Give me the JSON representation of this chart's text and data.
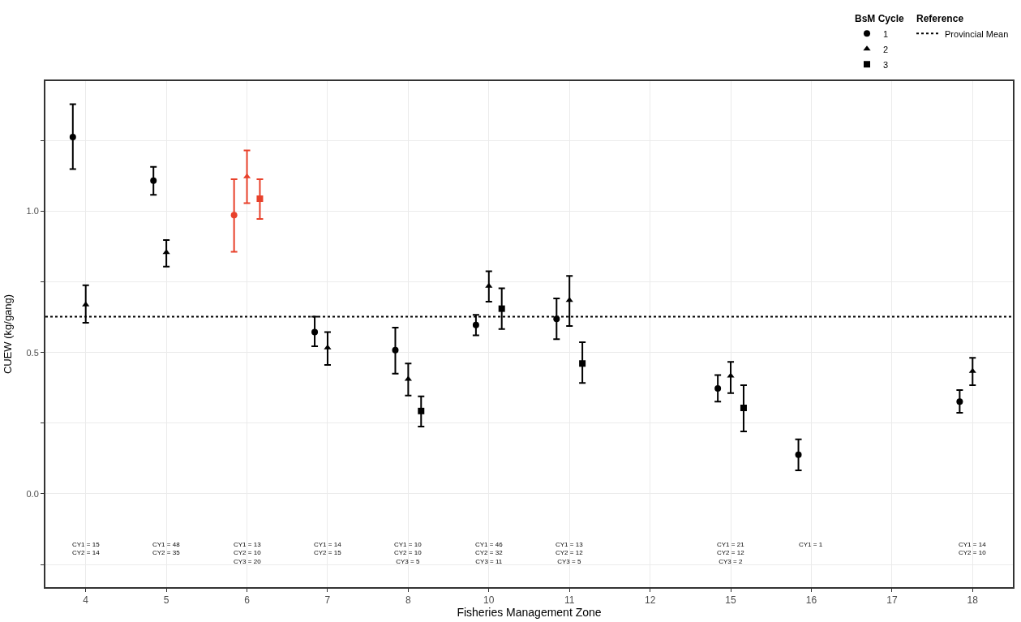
{
  "chart_data": {
    "type": "scatter",
    "xlabel": "Fisheries Management Zone",
    "ylabel": "CUEW (kg/gang)",
    "legend_title": "BsM Cycle",
    "legend": "top right",
    "grid": true,
    "categories": [
      "4",
      "5",
      "6",
      "7",
      "8",
      "10",
      "11",
      "12",
      "15",
      "16",
      "17",
      "18"
    ],
    "ylim": [
      -0.33,
      1.46
    ],
    "yticks": [
      {
        "value": -0.25,
        "label": null
      },
      {
        "value": 0,
        "label": "0.0"
      },
      {
        "value": 0.25,
        "label": null
      },
      {
        "value": 0.5,
        "label": "0.5"
      },
      {
        "value": 0.75,
        "label": null
      },
      {
        "value": 1,
        "label": "1.0"
      },
      {
        "value": 1.25,
        "label": null
      }
    ],
    "series": [
      {
        "name": "1",
        "marker": "circle",
        "color": "#000000",
        "colors": [
          "#000000",
          "#000000",
          "#e8412b",
          "#000000",
          "#000000",
          "#000000",
          "#000000",
          null,
          "#000000",
          "#000000",
          null,
          "#000000"
        ],
        "values": [
          1.262,
          1.108,
          0.986,
          0.572,
          0.508,
          0.597,
          0.619,
          null,
          0.373,
          0.138,
          null,
          0.326
        ],
        "errors": [
          [
            1.149,
            1.378
          ],
          [
            1.058,
            1.157
          ],
          [
            0.856,
            1.113
          ],
          [
            0.522,
            0.627
          ],
          [
            0.425,
            0.588
          ],
          [
            0.561,
            0.633
          ],
          [
            0.547,
            0.691
          ],
          null,
          [
            0.326,
            0.42
          ],
          [
            0.083,
            0.193
          ],
          null,
          [
            0.287,
            0.367
          ]
        ]
      },
      {
        "name": "2",
        "marker": "triangle",
        "color": "#000000",
        "colors": [
          "#000000",
          "#000000",
          "#e8412b",
          "#000000",
          "#000000",
          "#000000",
          "#000000",
          null,
          "#000000",
          null,
          null,
          "#000000"
        ],
        "values": [
          0.669,
          0.854,
          1.122,
          0.517,
          0.406,
          0.735,
          0.685,
          null,
          0.417,
          null,
          null,
          0.434
        ],
        "errors": [
          [
            0.605,
            0.738
          ],
          [
            0.804,
            0.898
          ],
          [
            1.028,
            1.215
          ],
          [
            0.456,
            0.572
          ],
          [
            0.348,
            0.461
          ],
          [
            0.68,
            0.787
          ],
          [
            0.594,
            0.771
          ],
          null,
          [
            0.356,
            0.467
          ],
          null,
          null,
          [
            0.384,
            0.481
          ]
        ]
      },
      {
        "name": "3",
        "marker": "square",
        "color": "#000000",
        "colors": [
          null,
          null,
          "#e8412b",
          null,
          "#000000",
          "#000000",
          "#000000",
          null,
          "#000000",
          null,
          null,
          null
        ],
        "values": [
          null,
          null,
          1.044,
          null,
          0.293,
          0.655,
          0.461,
          null,
          0.304,
          null,
          null,
          null
        ],
        "errors": [
          null,
          null,
          [
            0.972,
            1.113
          ],
          null,
          [
            0.238,
            0.345
          ],
          [
            0.583,
            0.727
          ],
          [
            0.392,
            0.536
          ],
          null,
          [
            0.221,
            0.384
          ],
          null,
          null,
          null
        ]
      }
    ],
    "ref_lines": [
      {
        "axis": "y",
        "value": 0.627,
        "label": "Provincial Mean",
        "color": "#000000",
        "line_style": "dotted"
      }
    ],
    "annotations": [
      "Reference",
      "CY1 = 15\nCY2 = 14",
      "CY1 = 48\nCY2 = 35",
      "CY1 = 13\nCY2 = 10\nCY3 = 20",
      "CY1 = 14\nCY2 = 15",
      "CY1 = 10\nCY2 = 10\nCY3 = 5",
      "CY1 = 46\nCY2 = 32\nCY3 = 11",
      "CY1 = 13\nCY2 = 12\nCY3 = 5",
      "CY1 = 21\nCY2 = 12\nCY3 = 2",
      "CY1 = 1",
      "CY1 = 14\nCY2 = 10"
    ]
  }
}
